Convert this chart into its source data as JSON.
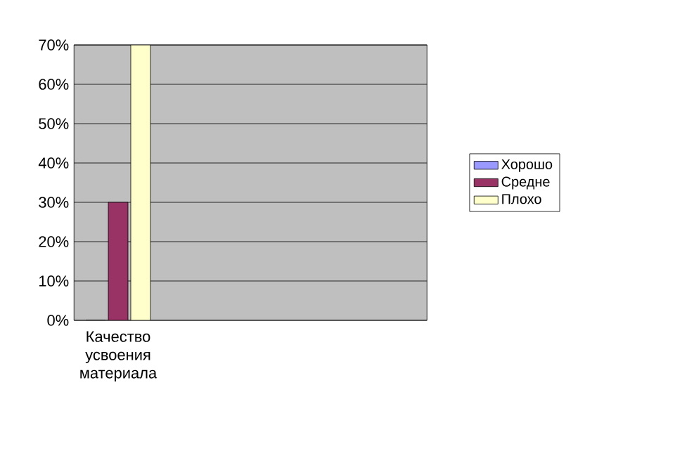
{
  "chart_data": {
    "type": "bar",
    "categories": [
      "Качество усвоения материала",
      null,
      null,
      null
    ],
    "series": [
      {
        "name": "Хорошо",
        "color": "#9999ff",
        "values": [
          0,
          null,
          null,
          null
        ]
      },
      {
        "name": "Средне",
        "color": "#993366",
        "values": [
          30,
          null,
          null,
          null
        ]
      },
      {
        "name": "Плохо",
        "color": "#ffffcc",
        "values": [
          70,
          null,
          null,
          null
        ]
      }
    ],
    "ylim": [
      0,
      70
    ],
    "yticks": [
      {
        "value": 0,
        "label": "0%"
      },
      {
        "value": 10,
        "label": "10%"
      },
      {
        "value": 20,
        "label": "20%"
      },
      {
        "value": 30,
        "label": "30%"
      },
      {
        "value": 40,
        "label": "40%"
      },
      {
        "value": 50,
        "label": "50%"
      },
      {
        "value": 60,
        "label": "60%"
      },
      {
        "value": 70,
        "label": "70%"
      }
    ],
    "grid": "y",
    "legend": "right"
  }
}
